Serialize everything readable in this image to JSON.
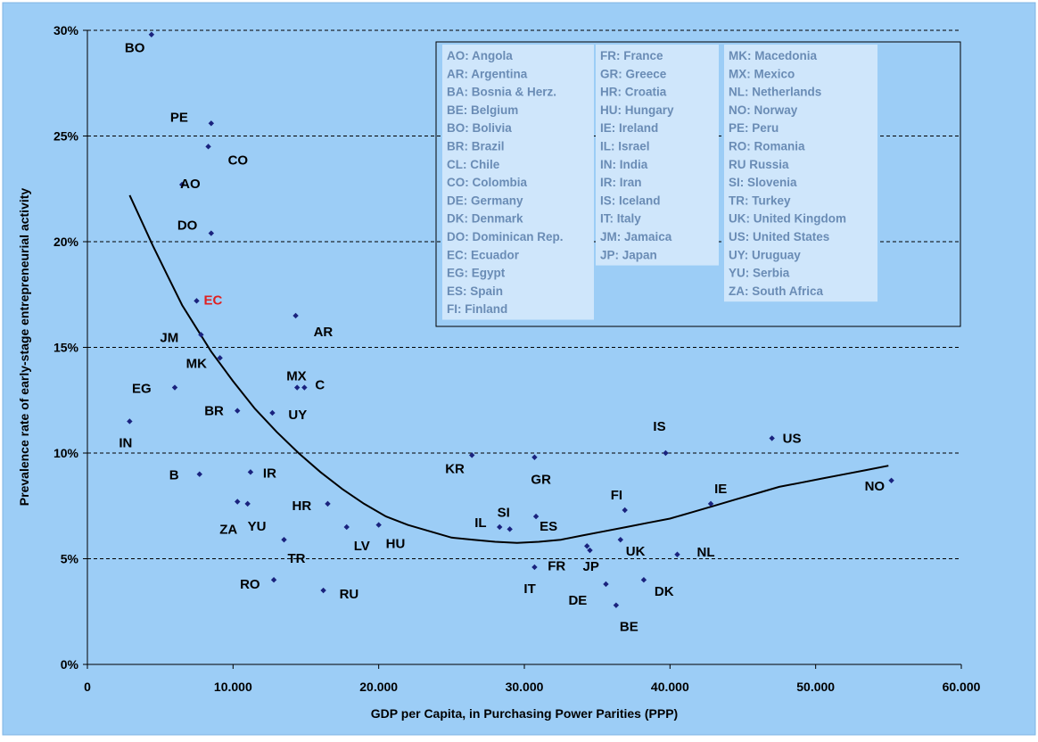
{
  "chart_data": {
    "type": "scatter",
    "xlabel": "GDP per Capita, in Purchasing Power Parities (PPP)",
    "ylabel": "Prevalence rate of early-stage entrepreneurial activity",
    "xlim": [
      0,
      60000
    ],
    "ylim": [
      0,
      30
    ],
    "x_ticks": [
      "0",
      "10.000",
      "20.000",
      "30.000",
      "40.000",
      "50.000",
      "60.000"
    ],
    "y_ticks": [
      "0%",
      "5%",
      "10%",
      "15%",
      "20%",
      "25%",
      "30%"
    ],
    "grid": "horizontal dashed",
    "colors": {
      "background": "#9ccdf6",
      "marker": "#1a237e",
      "highlight": "#e02020",
      "legend_text": "#6a8cb5",
      "legend_box": "#cfe6fb"
    },
    "points": [
      {
        "label": "BO",
        "x": 4400,
        "y": 29.8
      },
      {
        "label": "PE",
        "x": 8500,
        "y": 25.6
      },
      {
        "label": "CO",
        "x": 8300,
        "y": 24.5
      },
      {
        "label": "AO",
        "x": 6500,
        "y": 22.7
      },
      {
        "label": "DO",
        "x": 8500,
        "y": 20.4
      },
      {
        "label": "EC",
        "x": 7500,
        "y": 17.2,
        "highlight": true
      },
      {
        "label": "AR",
        "x": 14300,
        "y": 16.5
      },
      {
        "label": "JM",
        "x": 7800,
        "y": 15.6
      },
      {
        "label": "MK",
        "x": 9100,
        "y": 14.5
      },
      {
        "label": "MX",
        "x": 14400,
        "y": 13.1
      },
      {
        "label": "C",
        "x": 14900,
        "y": 13.1
      },
      {
        "label": "EG",
        "x": 6000,
        "y": 13.1
      },
      {
        "label": "BR",
        "x": 10300,
        "y": 12.0
      },
      {
        "label": "UY",
        "x": 12700,
        "y": 11.9
      },
      {
        "label": "IN",
        "x": 2900,
        "y": 11.5
      },
      {
        "label": "IS",
        "x": 39700,
        "y": 10.0
      },
      {
        "label": "US",
        "x": 47000,
        "y": 10.7
      },
      {
        "label": "KR",
        "x": 26400,
        "y": 9.9
      },
      {
        "label": "GR",
        "x": 30700,
        "y": 9.8
      },
      {
        "label": "B",
        "x": 7700,
        "y": 9.0
      },
      {
        "label": "IR",
        "x": 11200,
        "y": 9.1
      },
      {
        "label": "NO",
        "x": 55200,
        "y": 8.7
      },
      {
        "label": "ZA",
        "x": 10300,
        "y": 7.7
      },
      {
        "label": "YU",
        "x": 11000,
        "y": 7.6
      },
      {
        "label": "HR",
        "x": 16500,
        "y": 7.6
      },
      {
        "label": "IE",
        "x": 42800,
        "y": 7.6
      },
      {
        "label": "FI",
        "x": 36900,
        "y": 7.3
      },
      {
        "label": "ES",
        "x": 30800,
        "y": 7.0
      },
      {
        "label": "LV",
        "x": 17800,
        "y": 6.5
      },
      {
        "label": "HU",
        "x": 20000,
        "y": 6.6
      },
      {
        "label": "IL",
        "x": 28300,
        "y": 6.5
      },
      {
        "label": "SI",
        "x": 29000,
        "y": 6.4
      },
      {
        "label": "TR",
        "x": 13500,
        "y": 5.9
      },
      {
        "label": "UK",
        "x": 36600,
        "y": 5.9
      },
      {
        "label": "FR",
        "x": 34300,
        "y": 5.6
      },
      {
        "label": "JP",
        "x": 34500,
        "y": 5.4
      },
      {
        "label": "NL",
        "x": 40500,
        "y": 5.2
      },
      {
        "label": "IT",
        "x": 30700,
        "y": 4.6
      },
      {
        "label": "DK",
        "x": 38200,
        "y": 4.0
      },
      {
        "label": "RO",
        "x": 12800,
        "y": 4.0
      },
      {
        "label": "DE",
        "x": 35600,
        "y": 3.8
      },
      {
        "label": "RU",
        "x": 16200,
        "y": 3.5
      },
      {
        "label": "BE",
        "x": 36300,
        "y": 2.8
      }
    ],
    "trendline": [
      {
        "x": 2900,
        "y": 22.2
      },
      {
        "x": 3500,
        "y": 21.3
      },
      {
        "x": 4500,
        "y": 19.8
      },
      {
        "x": 5500,
        "y": 18.4
      },
      {
        "x": 6500,
        "y": 17.0
      },
      {
        "x": 7500,
        "y": 15.9
      },
      {
        "x": 8500,
        "y": 14.8
      },
      {
        "x": 10000,
        "y": 13.4
      },
      {
        "x": 11500,
        "y": 12.1
      },
      {
        "x": 13000,
        "y": 11.0
      },
      {
        "x": 14500,
        "y": 10.0
      },
      {
        "x": 16000,
        "y": 9.1
      },
      {
        "x": 17500,
        "y": 8.3
      },
      {
        "x": 19000,
        "y": 7.6
      },
      {
        "x": 20500,
        "y": 7.0
      },
      {
        "x": 22000,
        "y": 6.6
      },
      {
        "x": 23500,
        "y": 6.3
      },
      {
        "x": 25000,
        "y": 6.0
      },
      {
        "x": 26500,
        "y": 5.9
      },
      {
        "x": 28000,
        "y": 5.8
      },
      {
        "x": 29500,
        "y": 5.75
      },
      {
        "x": 31000,
        "y": 5.8
      },
      {
        "x": 32500,
        "y": 5.9
      },
      {
        "x": 34000,
        "y": 6.1
      },
      {
        "x": 35500,
        "y": 6.3
      },
      {
        "x": 37000,
        "y": 6.5
      },
      {
        "x": 38500,
        "y": 6.7
      },
      {
        "x": 40000,
        "y": 6.9
      },
      {
        "x": 41500,
        "y": 7.2
      },
      {
        "x": 43000,
        "y": 7.5
      },
      {
        "x": 44500,
        "y": 7.8
      },
      {
        "x": 46000,
        "y": 8.1
      },
      {
        "x": 47500,
        "y": 8.4
      },
      {
        "x": 49000,
        "y": 8.6
      },
      {
        "x": 50500,
        "y": 8.8
      },
      {
        "x": 52000,
        "y": 9.0
      },
      {
        "x": 53500,
        "y": 9.2
      },
      {
        "x": 55000,
        "y": 9.4
      }
    ],
    "legend": {
      "placement": "top-right",
      "columns": [
        [
          "AO: Angola",
          "AR: Argentina",
          "BA: Bosnia & Herz.",
          "BE: Belgium",
          "BO: Bolivia",
          "BR: Brazil",
          "CL: Chile",
          "CO: Colombia",
          "DE: Germany",
          "DK: Denmark",
          "DO: Dominican Rep.",
          "EC: Ecuador",
          "EG: Egypt",
          "ES: Spain",
          "FI: Finland"
        ],
        [
          "FR: France",
          "GR: Greece",
          "HR: Croatia",
          "HU: Hungary",
          "IE: Ireland",
          "IL: Israel",
          "IN: India",
          "IR: Iran",
          "IS: Iceland",
          "IT: Italy",
          "JM: Jamaica",
          "JP: Japan"
        ],
        [
          "MK: Macedonia",
          "MX: Mexico",
          "NL: Netherlands",
          "NO: Norway",
          "PE: Peru",
          "RO: Romania",
          "RU Russia",
          "SI: Slovenia",
          "TR: Turkey",
          "UK: United Kingdom",
          "US: United States",
          "UY: Uruguay",
          "YU: Serbia",
          "ZA: South Africa"
        ]
      ]
    }
  }
}
